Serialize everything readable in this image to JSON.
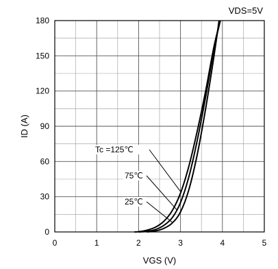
{
  "chart_data": {
    "type": "line",
    "title": "",
    "condition_label": "VDS=5V",
    "xlabel": "VGS (V)",
    "ylabel": "ID (A)",
    "xlim": [
      0,
      5
    ],
    "ylim": [
      0,
      180
    ],
    "x_ticks": [
      "0",
      "1",
      "2",
      "3",
      "4",
      "5"
    ],
    "y_ticks": [
      "0",
      "30",
      "60",
      "90",
      "120",
      "150",
      "180"
    ],
    "grid": true,
    "series": [
      {
        "name": "Tc =125℃",
        "x": [
          1.9,
          2.0,
          2.2,
          2.4,
          2.6,
          2.8,
          3.0,
          3.2,
          3.4,
          3.6,
          3.8,
          3.95
        ],
        "y": [
          0,
          0.2,
          1.5,
          4,
          9,
          18,
          33,
          56,
          86,
          120,
          158,
          180
        ]
      },
      {
        "name": "75℃",
        "x": [
          2.0,
          2.2,
          2.4,
          2.6,
          2.8,
          3.0,
          3.2,
          3.4,
          3.6,
          3.8,
          3.95
        ],
        "y": [
          0,
          0.5,
          2,
          5.5,
          12,
          25,
          47,
          78,
          115,
          156,
          180
        ]
      },
      {
        "name": "25℃",
        "x": [
          2.2,
          2.4,
          2.6,
          2.8,
          3.0,
          3.2,
          3.4,
          3.6,
          3.8,
          3.92
        ],
        "y": [
          0,
          0.8,
          3,
          7.5,
          17,
          36,
          66,
          105,
          150,
          180
        ]
      }
    ],
    "annotations": [
      {
        "label": "Tc =125℃",
        "series_index": 0
      },
      {
        "label": "75℃",
        "series_index": 1
      },
      {
        "label": "25℃",
        "series_index": 2
      }
    ]
  }
}
